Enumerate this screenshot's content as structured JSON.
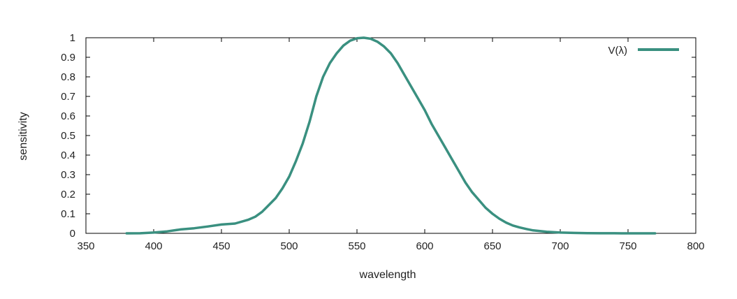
{
  "chart_data": {
    "type": "line",
    "title": "",
    "xlabel": "wavelength",
    "ylabel": "sensitivity",
    "xlim": [
      350,
      800
    ],
    "ylim": [
      0,
      1
    ],
    "x_ticks": [
      "350",
      "400",
      "450",
      "500",
      "550",
      "600",
      "650",
      "700",
      "750",
      "800"
    ],
    "y_ticks": [
      "0",
      "0.1",
      "0.2",
      "0.3",
      "0.4",
      "0.5",
      "0.6",
      "0.7",
      "0.8",
      "0.9",
      "1"
    ],
    "grid": false,
    "legend_position": "top-right",
    "series": [
      {
        "name": "V(λ)",
        "color": "#3a9080",
        "points": [
          [
            380,
            0.0
          ],
          [
            390,
            0.0005
          ],
          [
            400,
            0.004
          ],
          [
            410,
            0.01
          ],
          [
            420,
            0.02
          ],
          [
            430,
            0.026
          ],
          [
            440,
            0.035
          ],
          [
            450,
            0.045
          ],
          [
            460,
            0.05
          ],
          [
            470,
            0.07
          ],
          [
            475,
            0.085
          ],
          [
            480,
            0.11
          ],
          [
            490,
            0.18
          ],
          [
            495,
            0.23
          ],
          [
            500,
            0.29
          ],
          [
            505,
            0.37
          ],
          [
            510,
            0.46
          ],
          [
            515,
            0.57
          ],
          [
            520,
            0.7
          ],
          [
            525,
            0.8
          ],
          [
            530,
            0.87
          ],
          [
            535,
            0.92
          ],
          [
            540,
            0.96
          ],
          [
            545,
            0.985
          ],
          [
            550,
            0.997
          ],
          [
            555,
            1.0
          ],
          [
            560,
            0.995
          ],
          [
            565,
            0.98
          ],
          [
            570,
            0.955
          ],
          [
            575,
            0.92
          ],
          [
            580,
            0.87
          ],
          [
            585,
            0.81
          ],
          [
            590,
            0.75
          ],
          [
            595,
            0.69
          ],
          [
            600,
            0.63
          ],
          [
            605,
            0.56
          ],
          [
            610,
            0.5
          ],
          [
            615,
            0.44
          ],
          [
            620,
            0.38
          ],
          [
            625,
            0.32
          ],
          [
            630,
            0.26
          ],
          [
            635,
            0.21
          ],
          [
            640,
            0.17
          ],
          [
            645,
            0.13
          ],
          [
            650,
            0.1
          ],
          [
            655,
            0.075
          ],
          [
            660,
            0.055
          ],
          [
            665,
            0.04
          ],
          [
            670,
            0.03
          ],
          [
            675,
            0.022
          ],
          [
            680,
            0.015
          ],
          [
            690,
            0.008
          ],
          [
            700,
            0.004
          ],
          [
            710,
            0.002
          ],
          [
            720,
            0.001
          ],
          [
            730,
            0.0005
          ],
          [
            740,
            0.0002
          ],
          [
            750,
            0.0001
          ],
          [
            760,
            0.0
          ],
          [
            770,
            0.0
          ]
        ]
      }
    ]
  }
}
